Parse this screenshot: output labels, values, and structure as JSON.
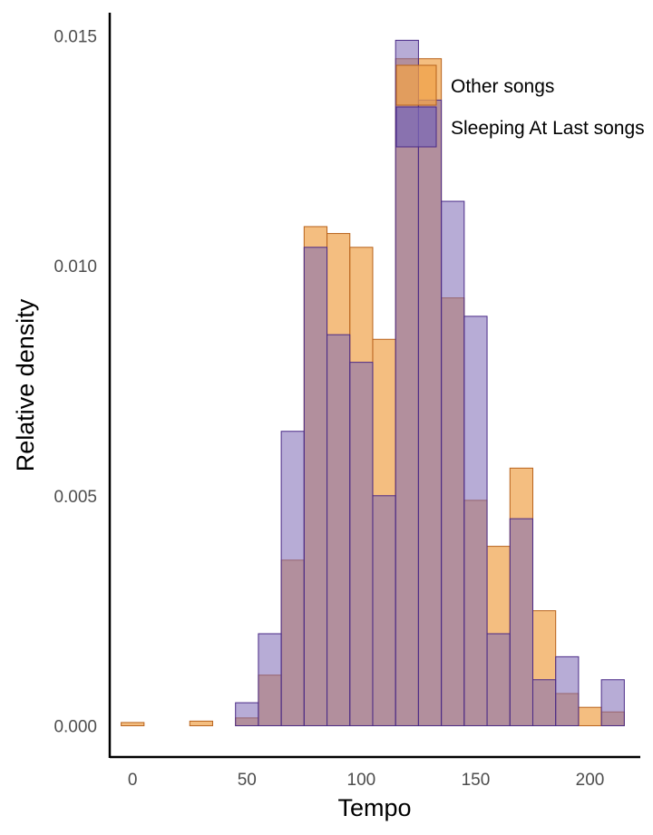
{
  "chart_data": {
    "type": "bar",
    "subtype": "overlaid-histogram",
    "title": "",
    "xlabel": "Tempo",
    "ylabel": "Relative density",
    "xlim": [
      -10,
      222
    ],
    "ylim": [
      -0.0007,
      0.0155
    ],
    "x_ticks": [
      0,
      50,
      100,
      150,
      200
    ],
    "x_tick_labels": [
      "0",
      "50",
      "100",
      "150",
      "200"
    ],
    "y_ticks": [
      0.0,
      0.005,
      0.01,
      0.015
    ],
    "y_tick_labels": [
      "0.000",
      "0.005",
      "0.010",
      "0.015"
    ],
    "bin_width": 10,
    "bin_centers": [
      0,
      10,
      20,
      30,
      40,
      50,
      60,
      70,
      80,
      90,
      100,
      110,
      120,
      130,
      140,
      150,
      160,
      170,
      180,
      190,
      200,
      210
    ],
    "grid": false,
    "legend_position": "top-right",
    "series": [
      {
        "name": "Other songs",
        "fill": "#f0a24a",
        "stroke": "#b8621b",
        "opacity": 0.7,
        "values": [
          7e-05,
          0.0,
          0.0,
          0.0001,
          0.0,
          0.00017,
          0.0011,
          0.0036,
          0.01085,
          0.0107,
          0.0104,
          0.0084,
          0.0145,
          0.0145,
          0.0093,
          0.0049,
          0.0039,
          0.0056,
          0.0025,
          0.0007,
          0.0004,
          0.0003
        ]
      },
      {
        "name": "Sleeping At Last songs",
        "fill": "#7b68b5",
        "stroke": "#4a2a87",
        "opacity": 0.55,
        "values": [
          0.0,
          0.0,
          0.0,
          0.0,
          0.0,
          0.0005,
          0.002,
          0.0064,
          0.0104,
          0.0085,
          0.0079,
          0.005,
          0.0149,
          0.0136,
          0.0114,
          0.0089,
          0.002,
          0.0045,
          0.001,
          0.0015,
          0.0,
          0.001
        ]
      }
    ]
  }
}
